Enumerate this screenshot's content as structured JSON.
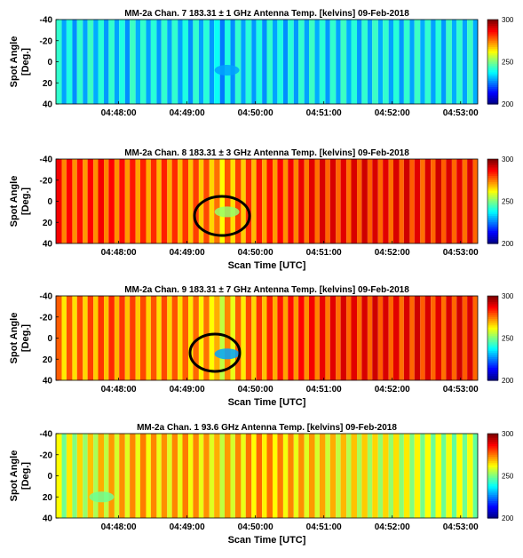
{
  "chart_data": [
    {
      "type": "heatmap",
      "title": "MM-2a Chan. 7 183.31 ± 1 GHz Antenna Temp. [kelvins] 09-Feb-2018",
      "xlabel": "",
      "ylabel": [
        "Spot Angle",
        "[Deg.]"
      ],
      "x_ticks": [
        "04:48:00",
        "04:49:00",
        "04:50:00",
        "04:51:00",
        "04:52:00",
        "04:53:00"
      ],
      "y_ticks": [
        "-40",
        "-20",
        "0",
        "20",
        "40"
      ],
      "ylim": [
        -40,
        40
      ],
      "colorbar": {
        "min": 200,
        "max": 300,
        "ticks": [
          "300",
          "250",
          "200"
        ]
      },
      "scans": 40,
      "scan_values_k": [
        242,
        240,
        242,
        243,
        241,
        242,
        240,
        243,
        242,
        241,
        242,
        242,
        240,
        242,
        241,
        238,
        240,
        242,
        241,
        240,
        242,
        240,
        241,
        242,
        243,
        241,
        242,
        243,
        241,
        242,
        243,
        242,
        241,
        242,
        243,
        242,
        241,
        243,
        242,
        243
      ],
      "cold_spot": {
        "time": "04:49:35",
        "angle_deg": 8,
        "value_k": 228
      }
    },
    {
      "type": "heatmap",
      "title": "MM-2a Chan. 8 183.31 ± 3 GHz Antenna Temp. [kelvins] 09-Feb-2018",
      "xlabel": "Scan Time [UTC]",
      "ylabel": [
        "Spot Angle",
        "[Deg.]"
      ],
      "x_ticks": [
        "04:48:00",
        "04:49:00",
        "04:50:00",
        "04:51:00",
        "04:52:00",
        "04:53:00"
      ],
      "y_ticks": [
        "-40",
        "-20",
        "0",
        "20",
        "40"
      ],
      "ylim": [
        -40,
        40
      ],
      "colorbar": {
        "min": 200,
        "max": 300,
        "ticks": [
          "300",
          "250",
          "200"
        ]
      },
      "scans": 40,
      "scan_values_k": [
        288,
        287,
        286,
        287,
        288,
        287,
        286,
        285,
        284,
        283,
        284,
        283,
        282,
        281,
        280,
        276,
        279,
        281,
        283,
        285,
        286,
        287,
        288,
        289,
        290,
        291,
        291,
        290,
        291,
        292,
        291,
        290,
        291,
        292,
        290,
        291,
        292,
        291,
        290,
        291
      ],
      "cold_spot": {
        "time": "04:49:35",
        "angle_deg": 10,
        "value_k": 252
      }
    },
    {
      "type": "heatmap",
      "title": "MM-2a Chan. 9 183.31 ± 7 GHz Antenna Temp. [kelvins] 09-Feb-2018",
      "xlabel": "Scan Time [UTC]",
      "ylabel": [
        "Spot Angle",
        "[Deg.]"
      ],
      "x_ticks": [
        "04:48:00",
        "04:49:00",
        "04:50:00",
        "04:51:00",
        "04:52:00",
        "04:53:00"
      ],
      "y_ticks": [
        "-40",
        "-20",
        "0",
        "20",
        "40"
      ],
      "ylim": [
        -40,
        40
      ],
      "colorbar": {
        "min": 200,
        "max": 300,
        "ticks": [
          "300",
          "250",
          "200"
        ]
      },
      "scans": 40,
      "scan_values_k": [
        278,
        279,
        280,
        281,
        282,
        283,
        282,
        281,
        280,
        279,
        280,
        279,
        278,
        277,
        276,
        270,
        274,
        278,
        280,
        282,
        284,
        285,
        286,
        287,
        288,
        289,
        290,
        291,
        290,
        291,
        292,
        291,
        290,
        291,
        292,
        291,
        290,
        291,
        292,
        291
      ],
      "cold_spot": {
        "time": "04:49:35",
        "angle_deg": 15,
        "value_k": 228
      }
    },
    {
      "type": "heatmap",
      "title": "MM-2a Chan. 1 93.6 GHz Antenna Temp. [kelvins] 09-Feb-2018",
      "xlabel": "Scan Time [UTC]",
      "ylabel": [
        "Spot Angle",
        "[Deg.]"
      ],
      "x_ticks": [
        "04:48:00",
        "04:49:00",
        "04:50:00",
        "04:51:00",
        "04:52:00",
        "04:53:00"
      ],
      "y_ticks": [
        "-40",
        "-20",
        "0",
        "20",
        "40"
      ],
      "ylim": [
        -40,
        40
      ],
      "colorbar": {
        "min": 200,
        "max": 300,
        "ticks": [
          "300",
          "250",
          "200"
        ]
      },
      "scans": 40,
      "scan_values_k": [
        262,
        264,
        266,
        268,
        270,
        272,
        273,
        274,
        275,
        274,
        273,
        274,
        275,
        274,
        273,
        270,
        272,
        274,
        276,
        277,
        276,
        275,
        274,
        273,
        272,
        271,
        270,
        269,
        268,
        267,
        266,
        266,
        265,
        264,
        263,
        262,
        262,
        261,
        262,
        261
      ],
      "cold_spot": {
        "time": "04:47:45",
        "angle_deg": 20,
        "value_k": 248
      }
    }
  ]
}
